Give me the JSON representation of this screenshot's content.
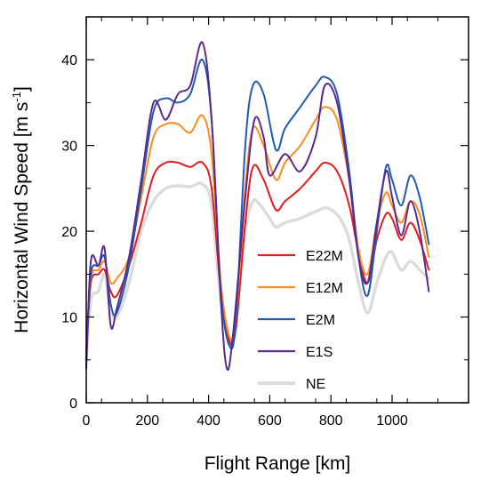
{
  "chart_data": {
    "type": "line",
    "title": "",
    "xlabel": "Flight Range [km]",
    "ylabel_main": "Horizontal Wind Speed [m s",
    "ylabel_sup": "-1",
    "ylabel_end": "]",
    "xlim": [
      0,
      1250
    ],
    "ylim": [
      0,
      45
    ],
    "xticks": [
      0,
      200,
      400,
      600,
      800,
      1000
    ],
    "yticks": [
      0,
      10,
      20,
      30,
      40
    ],
    "grid": false,
    "legend_position": "inside-middle-right",
    "series": [
      {
        "name": "NE",
        "color": "#dcdcdc",
        "points": [
          [
            0,
            5
          ],
          [
            15,
            12
          ],
          [
            40,
            13
          ],
          [
            60,
            15
          ],
          [
            80,
            11
          ],
          [
            100,
            10
          ],
          [
            140,
            14
          ],
          [
            180,
            20
          ],
          [
            220,
            23.5
          ],
          [
            260,
            25
          ],
          [
            300,
            25.3
          ],
          [
            340,
            25.2
          ],
          [
            380,
            25.5
          ],
          [
            410,
            23
          ],
          [
            440,
            12
          ],
          [
            470,
            7.5
          ],
          [
            490,
            9
          ],
          [
            520,
            20
          ],
          [
            545,
            23.5
          ],
          [
            570,
            23
          ],
          [
            600,
            21.5
          ],
          [
            620,
            20.5
          ],
          [
            650,
            21
          ],
          [
            700,
            21.5
          ],
          [
            750,
            22.3
          ],
          [
            790,
            22.7
          ],
          [
            830,
            21.5
          ],
          [
            860,
            19
          ],
          [
            890,
            14
          ],
          [
            920,
            10.5
          ],
          [
            950,
            14
          ],
          [
            980,
            17
          ],
          [
            1000,
            17.5
          ],
          [
            1030,
            15.5
          ],
          [
            1060,
            16.5
          ],
          [
            1090,
            15.5
          ],
          [
            1120,
            14.5
          ]
        ]
      },
      {
        "name": "E22M",
        "color": "#e41a1c",
        "points": [
          [
            0,
            6
          ],
          [
            15,
            14
          ],
          [
            40,
            15
          ],
          [
            60,
            15.5
          ],
          [
            80,
            13
          ],
          [
            100,
            12.5
          ],
          [
            140,
            16
          ],
          [
            180,
            21
          ],
          [
            220,
            26.5
          ],
          [
            260,
            28
          ],
          [
            300,
            28
          ],
          [
            340,
            27.5
          ],
          [
            380,
            28
          ],
          [
            410,
            25
          ],
          [
            440,
            13
          ],
          [
            470,
            7
          ],
          [
            490,
            9
          ],
          [
            520,
            21
          ],
          [
            545,
            27.5
          ],
          [
            580,
            26
          ],
          [
            620,
            22.5
          ],
          [
            650,
            23.5
          ],
          [
            700,
            25
          ],
          [
            750,
            27
          ],
          [
            780,
            28
          ],
          [
            820,
            27
          ],
          [
            860,
            23
          ],
          [
            890,
            17.5
          ],
          [
            920,
            14
          ],
          [
            950,
            19
          ],
          [
            980,
            22
          ],
          [
            1000,
            21.5
          ],
          [
            1030,
            19
          ],
          [
            1060,
            21
          ],
          [
            1090,
            19
          ],
          [
            1120,
            15.5
          ]
        ]
      },
      {
        "name": "E12M",
        "color": "#ff8c1a",
        "points": [
          [
            0,
            6
          ],
          [
            15,
            14.5
          ],
          [
            40,
            15.5
          ],
          [
            60,
            16.5
          ],
          [
            80,
            14
          ],
          [
            100,
            14.5
          ],
          [
            140,
            17
          ],
          [
            180,
            24
          ],
          [
            220,
            31
          ],
          [
            260,
            32.5
          ],
          [
            300,
            32.5
          ],
          [
            340,
            31.5
          ],
          [
            380,
            33.5
          ],
          [
            410,
            29
          ],
          [
            440,
            14
          ],
          [
            470,
            7.5
          ],
          [
            490,
            10
          ],
          [
            520,
            25
          ],
          [
            545,
            32
          ],
          [
            580,
            30
          ],
          [
            620,
            26
          ],
          [
            650,
            28
          ],
          [
            700,
            30
          ],
          [
            750,
            33
          ],
          [
            780,
            34.5
          ],
          [
            820,
            33
          ],
          [
            860,
            26
          ],
          [
            890,
            18
          ],
          [
            920,
            15
          ],
          [
            950,
            21
          ],
          [
            980,
            24.5
          ],
          [
            1000,
            23
          ],
          [
            1030,
            21
          ],
          [
            1060,
            23.5
          ],
          [
            1090,
            22
          ],
          [
            1120,
            17
          ]
        ]
      },
      {
        "name": "E2M",
        "color": "#1f5bb5",
        "points": [
          [
            0,
            5
          ],
          [
            15,
            15
          ],
          [
            40,
            16
          ],
          [
            60,
            17
          ],
          [
            80,
            11.5
          ],
          [
            100,
            10.5
          ],
          [
            140,
            16
          ],
          [
            180,
            25
          ],
          [
            220,
            34
          ],
          [
            260,
            35.5
          ],
          [
            300,
            35
          ],
          [
            340,
            36
          ],
          [
            380,
            40
          ],
          [
            410,
            33
          ],
          [
            440,
            13
          ],
          [
            470,
            6.5
          ],
          [
            490,
            10
          ],
          [
            520,
            30
          ],
          [
            545,
            37
          ],
          [
            580,
            36
          ],
          [
            620,
            29.5
          ],
          [
            650,
            32
          ],
          [
            700,
            34.5
          ],
          [
            750,
            37
          ],
          [
            780,
            38
          ],
          [
            820,
            36
          ],
          [
            860,
            27
          ],
          [
            890,
            17
          ],
          [
            920,
            12.5
          ],
          [
            950,
            20
          ],
          [
            980,
            27.5
          ],
          [
            1000,
            26
          ],
          [
            1030,
            23
          ],
          [
            1060,
            26.5
          ],
          [
            1090,
            24
          ],
          [
            1120,
            18.5
          ]
        ]
      },
      {
        "name": "E1S",
        "color": "#5b2a8c",
        "points": [
          [
            0,
            4
          ],
          [
            15,
            16.5
          ],
          [
            40,
            16
          ],
          [
            60,
            18
          ],
          [
            80,
            9
          ],
          [
            100,
            11
          ],
          [
            140,
            17
          ],
          [
            180,
            26
          ],
          [
            220,
            35
          ],
          [
            260,
            33
          ],
          [
            300,
            36
          ],
          [
            340,
            37
          ],
          [
            380,
            42
          ],
          [
            410,
            33
          ],
          [
            440,
            12
          ],
          [
            460,
            4
          ],
          [
            480,
            8
          ],
          [
            520,
            24
          ],
          [
            550,
            33
          ],
          [
            580,
            31
          ],
          [
            600,
            26.5
          ],
          [
            650,
            29
          ],
          [
            700,
            27
          ],
          [
            750,
            31
          ],
          [
            780,
            37
          ],
          [
            820,
            35
          ],
          [
            860,
            26
          ],
          [
            890,
            17
          ],
          [
            920,
            14
          ],
          [
            950,
            21
          ],
          [
            980,
            27
          ],
          [
            1000,
            24
          ],
          [
            1030,
            19.5
          ],
          [
            1060,
            23.5
          ],
          [
            1090,
            20
          ],
          [
            1120,
            13
          ]
        ]
      }
    ],
    "legend_order": [
      "E22M",
      "E12M",
      "E2M",
      "E1S",
      "NE"
    ]
  }
}
